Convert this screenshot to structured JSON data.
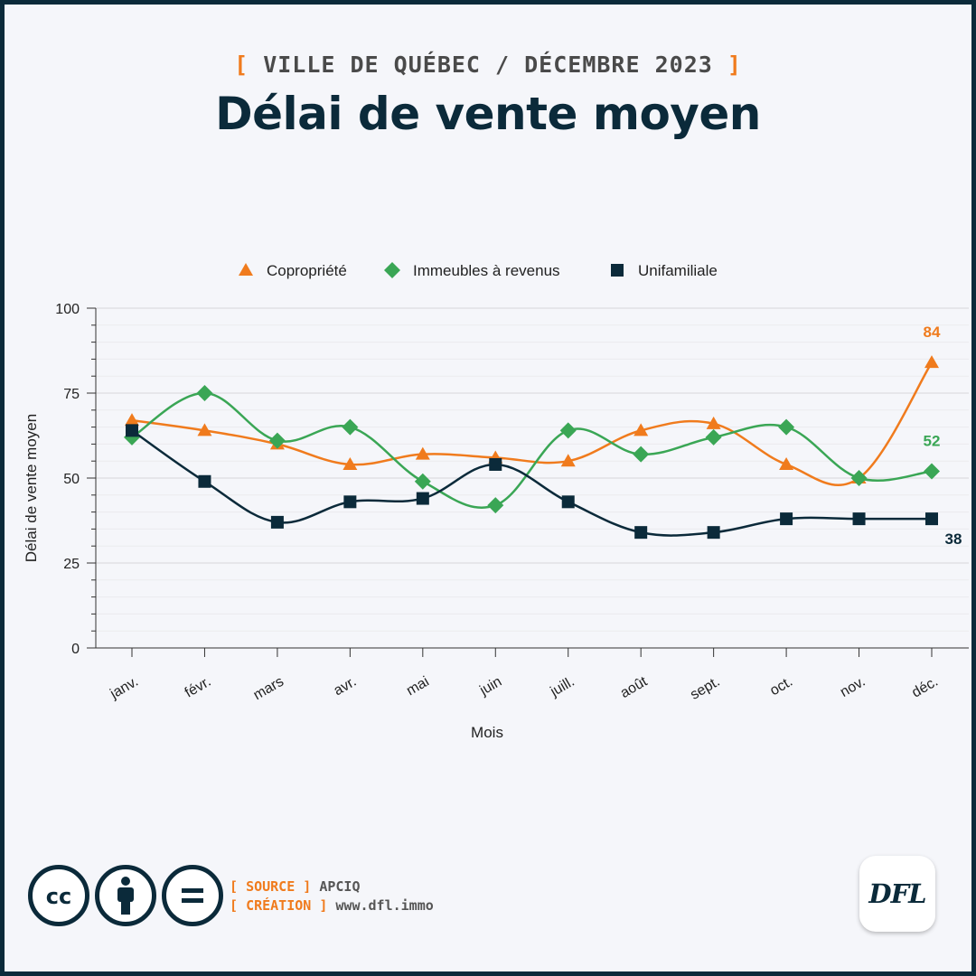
{
  "header": {
    "kicker": "VILLE DE QUÉBEC / DÉCEMBRE 2023",
    "kicker_open": "[",
    "kicker_close": "]",
    "title": "Délai de vente moyen"
  },
  "chart_data": {
    "type": "line",
    "xlabel": "Mois",
    "ylabel": "Délai de vente moyen",
    "ylim": [
      0,
      100
    ],
    "yticks": [
      "0",
      "25",
      "50",
      "75",
      "100"
    ],
    "categories": [
      "janv.",
      "févr.",
      "mars",
      "avr.",
      "mai",
      "juin",
      "juill.",
      "août",
      "sept.",
      "oct.",
      "nov.",
      "déc."
    ],
    "legend_position": "top-center",
    "grid": true,
    "series": [
      {
        "name": "Copropriété",
        "marker": "triangle",
        "color": "#f07b1d",
        "values": [
          67,
          64,
          60,
          54,
          57,
          56,
          55,
          64,
          66,
          54,
          50,
          84
        ],
        "end_label": "84"
      },
      {
        "name": "Immeubles à revenus",
        "marker": "diamond",
        "color": "#3aa655",
        "values": [
          62,
          75,
          61,
          65,
          49,
          42,
          64,
          57,
          62,
          65,
          50,
          52
        ],
        "end_label": "52"
      },
      {
        "name": "Unifamiliale",
        "marker": "square",
        "color": "#0b2a3a",
        "values": [
          64,
          49,
          37,
          43,
          44,
          54,
          43,
          34,
          34,
          38,
          38,
          38
        ],
        "end_label": "38"
      }
    ]
  },
  "footer": {
    "source_key": "SOURCE",
    "source_value": "APCIQ",
    "creation_key": "CRÉATION",
    "creation_value": "www.dfl.immo",
    "open": "[",
    "close": "]",
    "logo_text": "DFL",
    "icons": [
      "cc-icon",
      "attribution-icon",
      "no-derivatives-icon"
    ]
  }
}
